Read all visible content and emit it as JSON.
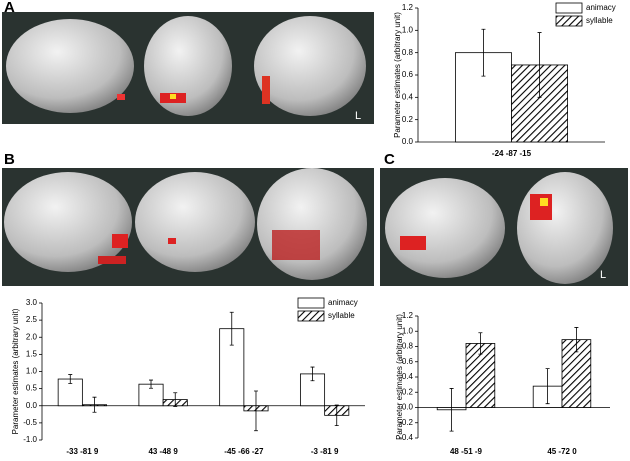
{
  "figure": {
    "panel_labels": [
      "A",
      "B",
      "C"
    ],
    "side_markers": [
      "L",
      "L"
    ]
  },
  "chart_data": [
    {
      "type": "bar",
      "y_label": "Parameter estimates (arbitrary unit)",
      "categories": [
        "-24 -87 -15"
      ],
      "series": [
        {
          "name": "animacy",
          "color": "#ffffff",
          "hatch": false,
          "values": [
            0.8
          ],
          "errors": [
            0.21
          ]
        },
        {
          "name": "syllable",
          "color": "#ffffff",
          "hatch": true,
          "values": [
            0.69
          ],
          "errors": [
            0.29
          ]
        }
      ],
      "ylim": [
        0,
        1.2
      ],
      "yticks": [
        {
          "value": 0,
          "label": "0.0"
        },
        0.2,
        0.4,
        0.6,
        0.8,
        {
          "value": 1,
          "label": "1.0"
        },
        1.2
      ],
      "legend": "upper right"
    },
    {
      "type": "bar",
      "y_label": "Parameter estimates (arbitrary unit)",
      "categories": [
        "-33 -81 9",
        "43 -48 9",
        "-45 -66 -27",
        "-3 -81 9"
      ],
      "series": [
        {
          "name": "animacy",
          "color": "#ffffff",
          "hatch": false,
          "values": [
            0.78,
            0.63,
            2.25,
            0.93
          ],
          "errors": [
            0.13,
            0.12,
            0.48,
            0.2
          ]
        },
        {
          "name": "syllable",
          "color": "#ffffff",
          "hatch": true,
          "values": [
            0.03,
            0.18,
            -0.15,
            -0.28
          ],
          "errors": [
            0.22,
            0.2,
            0.58,
            0.3
          ]
        }
      ],
      "ylim": [
        -1,
        3
      ],
      "yticks": [
        {
          "value": -1,
          "label": "-1.0"
        },
        -0.5,
        {
          "value": 0,
          "label": "0.0"
        },
        0.5,
        {
          "value": 1,
          "label": "1.0"
        },
        1.5,
        {
          "value": 2,
          "label": "2.0"
        },
        2.5,
        {
          "value": 3,
          "label": "3.0"
        }
      ],
      "legend": "upper right"
    },
    {
      "type": "bar",
      "y_label": "Parameter estimates (arbitrary unit)",
      "categories": [
        "48 -51 -9",
        "45 -72 0"
      ],
      "series": [
        {
          "name": "animacy",
          "color": "#ffffff",
          "hatch": false,
          "values": [
            -0.03,
            0.28
          ],
          "errors": [
            0.28,
            0.23
          ]
        },
        {
          "name": "syllable",
          "color": "#ffffff",
          "hatch": true,
          "values": [
            0.84,
            0.89
          ],
          "errors": [
            0.14,
            0.16
          ]
        }
      ],
      "ylim": [
        -0.4,
        1.2
      ],
      "yticks": [
        -0.4,
        -0.2,
        {
          "value": 0,
          "label": "0.0"
        },
        0.2,
        0.4,
        0.6,
        0.8,
        {
          "value": 1,
          "label": "1.0"
        },
        1.2
      ],
      "legend": false
    }
  ]
}
